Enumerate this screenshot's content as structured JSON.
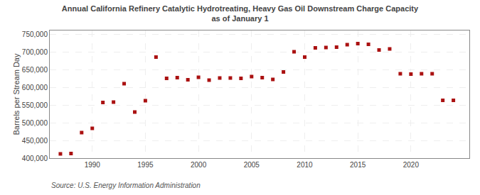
{
  "chart_data": {
    "type": "scatter",
    "title": "Annual California Refinery Catalytic Hydrotreating, Heavy Gas Oil Downstream Charge Capacity\nas of January 1",
    "ylabel": "Barrels per Stream Day",
    "annotations": [
      {
        "text": "Source: U.S. Energy Information Administration"
      }
    ],
    "x": [
      1987,
      1988,
      1989,
      1990,
      1991,
      1992,
      1993,
      1994,
      1995,
      1996,
      1997,
      1998,
      1999,
      2000,
      2001,
      2002,
      2003,
      2004,
      2005,
      2006,
      2007,
      2008,
      2009,
      2010,
      2011,
      2012,
      2013,
      2014,
      2015,
      2016,
      2017,
      2018,
      2019,
      2020,
      2021,
      2022,
      2023,
      2024
    ],
    "values": [
      412000,
      413000,
      472000,
      484000,
      557000,
      558000,
      610000,
      530000,
      562000,
      685000,
      625000,
      627000,
      621000,
      628000,
      620000,
      626000,
      626000,
      625000,
      630000,
      627000,
      622000,
      643000,
      700000,
      685000,
      711000,
      712000,
      713000,
      720000,
      723000,
      721000,
      705000,
      708000,
      638000,
      637000,
      638000,
      638000,
      563000,
      563000
    ],
    "color": "#aa1111",
    "marker": "square",
    "xlim": [
      1986.0,
      2025.5
    ],
    "xticks": [
      1990,
      1995,
      2000,
      2005,
      2010,
      2015,
      2020
    ],
    "ylim": [
      400000,
      760000
    ],
    "yticks": [
      {
        "value": 400000,
        "label": "400,000"
      },
      {
        "value": 450000,
        "label": "450,000"
      },
      {
        "value": 500000,
        "label": "500,000"
      },
      {
        "value": 550000,
        "label": "550,000"
      },
      {
        "value": 600000,
        "label": "600,000"
      },
      {
        "value": 650000,
        "label": "650,000"
      },
      {
        "value": 700000,
        "label": "700,000"
      },
      {
        "value": 750000,
        "label": "750,000"
      }
    ],
    "grid": true
  }
}
